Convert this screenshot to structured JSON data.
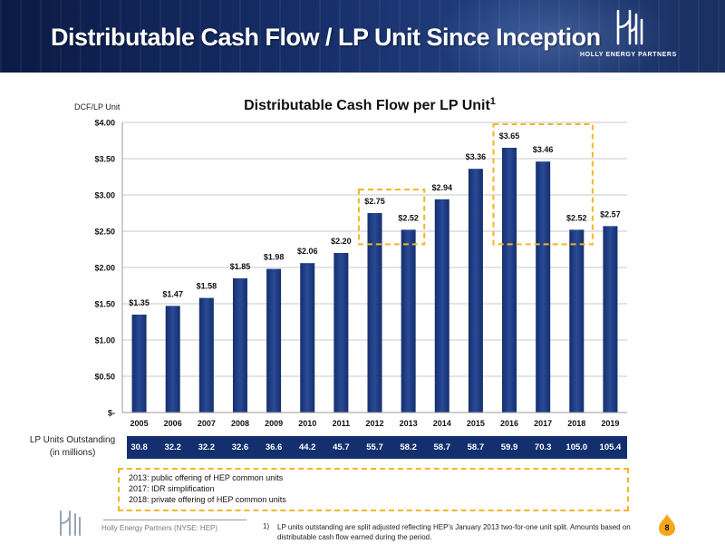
{
  "header": {
    "title": "Distributable Cash Flow / LP Unit Since Inception",
    "company": "HOLLY ENERGY PARTNERS",
    "logo_icon": "holly-energy-partners-logo-icon"
  },
  "chart_data": {
    "type": "bar",
    "title": "Distributable Cash Flow per LP Unit",
    "title_superscript": "1",
    "ylabel": "DCF/LP Unit",
    "xlabel": "",
    "categories": [
      "2005",
      "2006",
      "2007",
      "2008",
      "2009",
      "2010",
      "2011",
      "2012",
      "2013",
      "2014",
      "2015",
      "2016",
      "2017",
      "2018",
      "2019"
    ],
    "values": [
      1.35,
      1.47,
      1.58,
      1.85,
      1.98,
      2.06,
      2.2,
      2.75,
      2.52,
      2.94,
      3.36,
      3.65,
      3.46,
      2.52,
      2.57
    ],
    "value_labels": [
      "$1.35",
      "$1.47",
      "$1.58",
      "$1.85",
      "$1.98",
      "$2.06",
      "$2.20",
      "$2.75",
      "$2.52",
      "$2.94",
      "$3.36",
      "$3.65",
      "$3.46",
      "$2.52",
      "$2.57"
    ],
    "ylim": [
      0,
      4
    ],
    "yticks": [
      0,
      0.5,
      1,
      1.5,
      2,
      2.5,
      3,
      3.5,
      4
    ],
    "ytick_labels": [
      "$-",
      "$0.50",
      "$1.00",
      "$1.50",
      "$2.00",
      "$2.50",
      "$3.00",
      "$3.50",
      "$4.00"
    ],
    "grid": true,
    "bar_color": "#132f6e",
    "bar_color_light": "#2a4a95",
    "highlight_color": "#f5b623",
    "highlight_groups": [
      [
        "2012",
        "2013"
      ],
      [
        "2016",
        "2017",
        "2018"
      ]
    ]
  },
  "units_table": {
    "label_line1": "LP Units Outstanding",
    "label_line2": "(in millions)",
    "values": [
      "30.8",
      "32.2",
      "32.2",
      "32.6",
      "36.6",
      "44.2",
      "45.7",
      "55.7",
      "58.2",
      "58.7",
      "58.7",
      "59.9",
      "70.3",
      "105.0",
      "105.4"
    ]
  },
  "notes": [
    "2013: public offering of HEP common units",
    "2017: IDR simplification",
    "2018: private offering of HEP common units"
  ],
  "footer": {
    "company": "Holly Energy Partners (NYSE: HEP)",
    "footnote_number": "1)",
    "footnote_text": "LP units outstanding are split adjusted reflecting HEP’s January 2013 two-for-one unit split.  Amounts based on distributable cash flow earned during the period.",
    "page_number": "8",
    "badge_icon": "flame-badge-icon"
  },
  "colors": {
    "navy": "#132f6e",
    "accent": "#f5b623"
  }
}
